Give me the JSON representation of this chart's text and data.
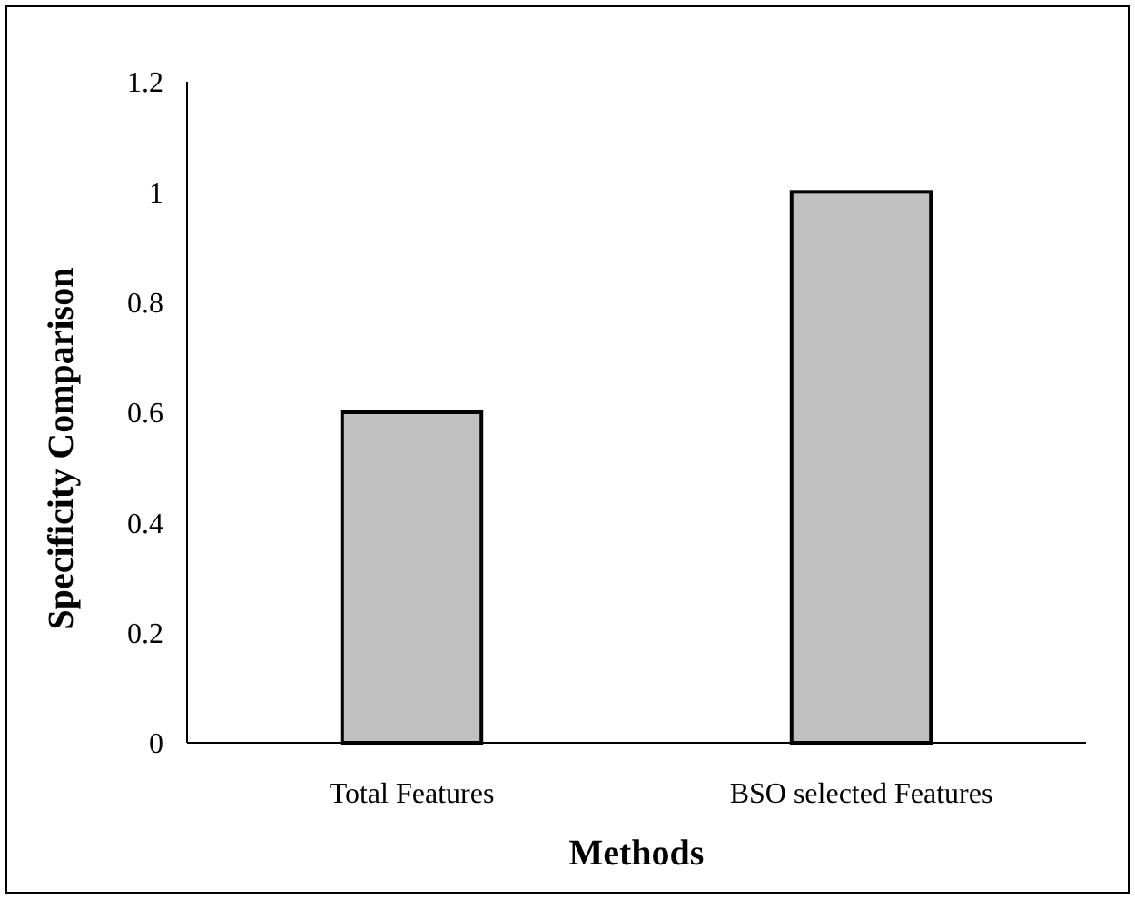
{
  "chart_data": {
    "type": "bar",
    "xlabel": "Methods",
    "ylabel": "Specificity Comparison",
    "categories": [
      "Total Features",
      "BSO selected Features"
    ],
    "values": [
      0.6,
      1
    ],
    "color": "#c0c0c0",
    "ylim": [
      0,
      1.2
    ],
    "yticks": [
      0,
      0.2,
      0.4,
      0.6,
      0.8,
      1,
      1.2
    ],
    "grid": false
  }
}
